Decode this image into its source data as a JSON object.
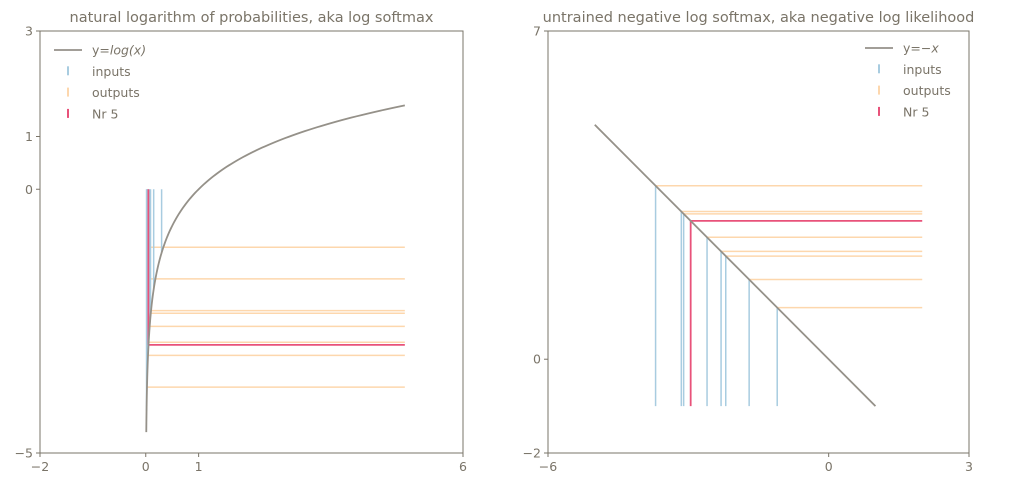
{
  "chart_data": [
    {
      "type": "line",
      "title": "natural logarithm of probabilities, aka log softmax",
      "xlim": [
        -2,
        6
      ],
      "ylim": [
        -5,
        3
      ],
      "xticks": [
        -2,
        0,
        1,
        6
      ],
      "yticks": [
        -5,
        0,
        1,
        3
      ],
      "xtick_labels": [
        "−2",
        "0",
        "1",
        "6"
      ],
      "ytick_labels": [
        "−5",
        "0",
        "1",
        "3"
      ],
      "curve": {
        "label": "y=log(x)",
        "label_plain": "y=",
        "label_italic": "log(x)",
        "x_min": 0.01,
        "x_max": 4.9,
        "color": "#959189"
      },
      "inputs": {
        "label": "inputs",
        "color": "#a8cce0",
        "x": [
          0.015,
          0.025,
          0.035,
          0.05,
          0.07,
          0.09,
          0.15,
          0.3
        ]
      },
      "outputs": {
        "label": "outputs",
        "color": "#fdd7ad",
        "x_end": 4.9,
        "y": [
          -1.1,
          -1.7,
          -2.3,
          -2.35,
          -2.6,
          -2.9,
          -3.15,
          -3.75
        ]
      },
      "highlight": {
        "label": "Nr 5",
        "color": "#e8527a",
        "x": 0.05,
        "y": -2.95
      },
      "legend": "top-left",
      "grid": false
    },
    {
      "type": "line",
      "title": "untrained negative log softmax, aka negative log likelihood",
      "xlim": [
        -6,
        3
      ],
      "ylim": [
        -2,
        7
      ],
      "xticks": [
        -6,
        0,
        3
      ],
      "yticks": [
        -2,
        0,
        7
      ],
      "xtick_labels": [
        "−6",
        "0",
        "3"
      ],
      "ytick_labels": [
        "−2",
        "0",
        "7"
      ],
      "curve": {
        "label": "y=−x",
        "label_plain": "y=",
        "label_italic": "−x",
        "x_min": -5,
        "x_max": 1,
        "color": "#959189"
      },
      "inputs": {
        "label": "inputs",
        "color": "#a8cce0",
        "x": [
          -3.7,
          -3.15,
          -3.1,
          -2.6,
          -2.3,
          -2.2,
          -1.7,
          -1.1
        ],
        "y_bottom": -1
      },
      "outputs": {
        "label": "outputs",
        "color": "#fdd7ad",
        "x_end": 2,
        "y": [
          3.7,
          3.15,
          3.1,
          2.6,
          2.3,
          2.2,
          1.7,
          1.1
        ]
      },
      "highlight": {
        "label": "Nr 5",
        "color": "#e8527a",
        "x": -2.95,
        "y": 2.95,
        "y_bottom": -1
      },
      "legend": "top-right",
      "grid": false
    }
  ]
}
